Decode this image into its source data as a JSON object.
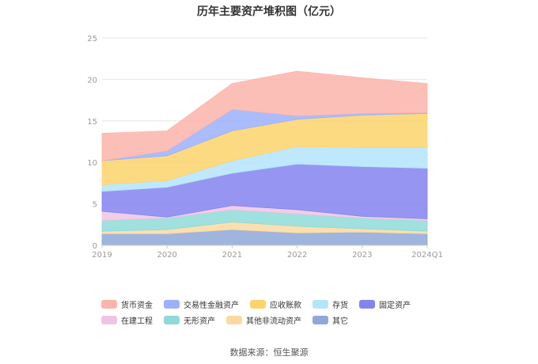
{
  "chart_data": {
    "type": "area",
    "stacked": true,
    "title": "历年主要资产堆积图（亿元）",
    "xlabel": "",
    "ylabel": "",
    "categories": [
      "2019",
      "2020",
      "2021",
      "2022",
      "2023",
      "2024Q1"
    ],
    "ylim": [
      0,
      25
    ],
    "yticks": [
      0,
      5,
      10,
      15,
      20,
      25
    ],
    "grid": true,
    "legend_position": "bottom",
    "series": [
      {
        "name": "其它",
        "color": "#8fa8d8",
        "values": [
          1.4,
          1.4,
          1.9,
          1.5,
          1.6,
          1.4
        ]
      },
      {
        "name": "其他非流动资产",
        "color": "#fcd9a0",
        "values": [
          0.3,
          0.5,
          0.9,
          0.8,
          0.4,
          0.3
        ]
      },
      {
        "name": "无形资产",
        "color": "#8fdad8",
        "values": [
          1.3,
          1.4,
          1.5,
          1.5,
          1.3,
          1.3
        ]
      },
      {
        "name": "在建工程",
        "color": "#f0c4e4",
        "values": [
          1.1,
          0.1,
          0.5,
          0.5,
          0.2,
          0.2
        ]
      },
      {
        "name": "固定资产",
        "color": "#8484f0",
        "values": [
          2.4,
          3.6,
          3.9,
          5.5,
          6.0,
          6.1
        ]
      },
      {
        "name": "存货",
        "color": "#b4e4fc",
        "values": [
          0.8,
          0.8,
          1.5,
          2.1,
          2.3,
          2.5
        ]
      },
      {
        "name": "应收账款",
        "color": "#fcd46c",
        "values": [
          2.9,
          3.0,
          3.6,
          3.3,
          3.9,
          4.1
        ]
      },
      {
        "name": "交易性金融资产",
        "color": "#9cb0fc",
        "values": [
          0.0,
          0.6,
          2.6,
          0.4,
          0.2,
          0.1
        ]
      },
      {
        "name": "货币资金",
        "color": "#fcb4ac",
        "values": [
          3.3,
          2.4,
          3.1,
          5.4,
          4.3,
          3.5
        ]
      }
    ],
    "source": "数据来源：恒生聚源"
  }
}
